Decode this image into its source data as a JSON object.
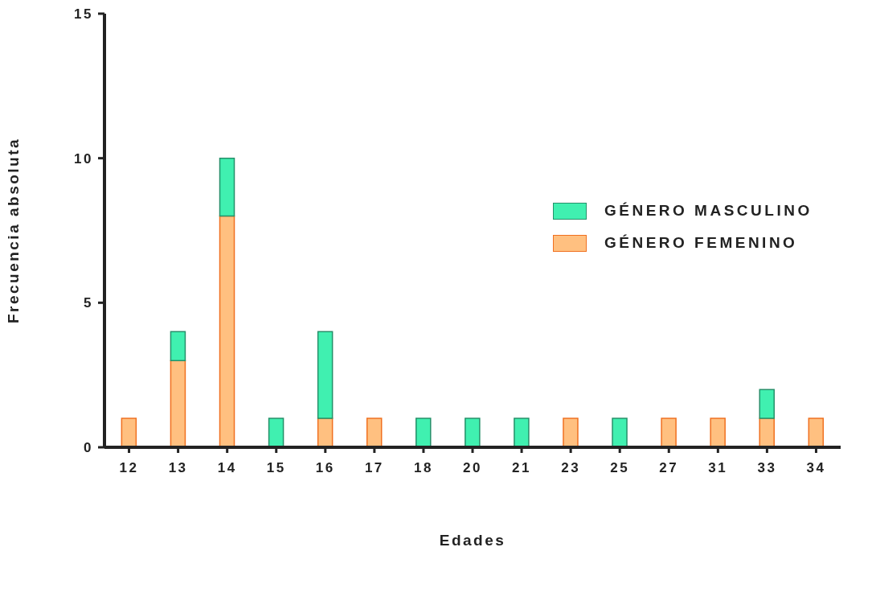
{
  "chart_data": {
    "type": "bar",
    "stacked": true,
    "xlabel": "Edades",
    "ylabel": "Frecuencia absoluta",
    "categories": [
      "12",
      "13",
      "14",
      "15",
      "16",
      "17",
      "18",
      "20",
      "21",
      "23",
      "25",
      "27",
      "31",
      "33",
      "34"
    ],
    "series": [
      {
        "name": "GÉNERO FEMENINO",
        "color": "#ffc080",
        "values": [
          1,
          3,
          8,
          0,
          1,
          1,
          0,
          0,
          0,
          1,
          0,
          1,
          1,
          1,
          1
        ]
      },
      {
        "name": "GÉNERO MASCULINO",
        "color": "#40f0b0",
        "values": [
          0,
          1,
          2,
          1,
          3,
          0,
          1,
          1,
          1,
          0,
          1,
          0,
          0,
          1,
          0
        ]
      }
    ],
    "ylim": [
      0,
      15
    ],
    "yticks": [
      0,
      5,
      10,
      15
    ],
    "grid": false,
    "legend": "right"
  }
}
